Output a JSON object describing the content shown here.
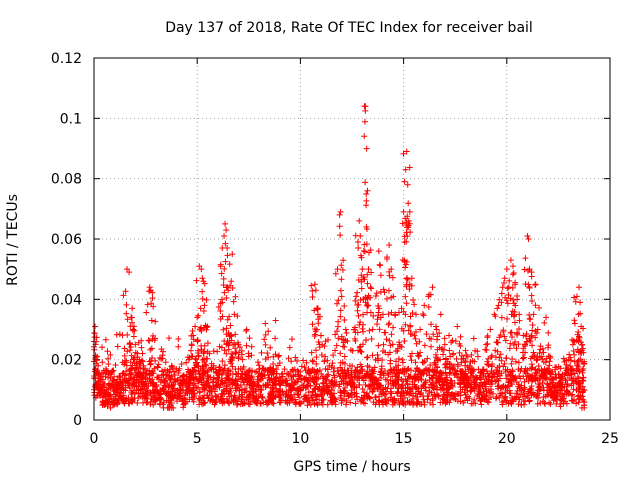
{
  "chart_data": {
    "type": "scatter",
    "title": "Day 137 of 2018, Rate Of TEC Index for receiver bail",
    "xlabel": "GPS time / hours",
    "ylabel": "ROTI / TECUs",
    "xlim": [
      0,
      25
    ],
    "ylim": [
      0,
      0.12
    ],
    "xticks": [
      0,
      5,
      10,
      15,
      20,
      25
    ],
    "yticks": [
      0,
      0.02,
      0.04,
      0.06,
      0.08,
      0.1,
      0.12
    ],
    "xtick_labels": [
      "0",
      "5",
      "10",
      "15",
      "20",
      "25"
    ],
    "ytick_labels": [
      "0",
      "0.02",
      "0.04",
      "0.06",
      "0.08",
      "0.1",
      "0.12"
    ],
    "grid": true,
    "marker": "+",
    "color": "#ff0000",
    "series": [
      {
        "name": "ROTI",
        "points": [
          [
            0.05,
            0.031
          ],
          [
            0.1,
            0.026
          ],
          [
            0.15,
            0.021
          ],
          [
            0.2,
            0.018
          ],
          [
            0.3,
            0.014
          ],
          [
            0.4,
            0.011
          ],
          [
            0.5,
            0.012
          ],
          [
            0.6,
            0.009
          ],
          [
            0.8,
            0.008
          ],
          [
            1.0,
            0.01
          ],
          [
            1.2,
            0.011
          ],
          [
            1.4,
            0.012
          ],
          [
            1.6,
            0.05
          ],
          [
            1.7,
            0.049
          ],
          [
            1.8,
            0.034
          ],
          [
            1.85,
            0.037
          ],
          [
            1.9,
            0.03
          ],
          [
            2.0,
            0.025
          ],
          [
            2.1,
            0.022
          ],
          [
            2.2,
            0.02
          ],
          [
            2.3,
            0.024
          ],
          [
            2.4,
            0.018
          ],
          [
            2.5,
            0.014
          ],
          [
            2.7,
            0.044
          ],
          [
            2.75,
            0.043
          ],
          [
            2.8,
            0.033
          ],
          [
            2.9,
            0.012
          ],
          [
            3.2,
            0.01
          ],
          [
            3.5,
            0.009
          ],
          [
            3.8,
            0.011
          ],
          [
            4.2,
            0.012
          ],
          [
            4.5,
            0.015
          ],
          [
            4.6,
            0.02
          ],
          [
            4.7,
            0.023
          ],
          [
            4.8,
            0.028
          ],
          [
            4.9,
            0.031
          ],
          [
            5.0,
            0.034
          ],
          [
            5.1,
            0.051
          ],
          [
            5.2,
            0.05
          ],
          [
            5.25,
            0.047
          ],
          [
            5.3,
            0.046
          ],
          [
            5.35,
            0.038
          ],
          [
            5.5,
            0.031
          ],
          [
            5.6,
            0.022
          ],
          [
            5.8,
            0.018
          ],
          [
            6.0,
            0.014
          ],
          [
            6.2,
            0.04
          ],
          [
            6.3,
            0.061
          ],
          [
            6.35,
            0.065
          ],
          [
            6.4,
            0.063
          ],
          [
            6.45,
            0.057
          ],
          [
            6.5,
            0.043
          ],
          [
            6.6,
            0.028
          ],
          [
            6.65,
            0.046
          ],
          [
            6.7,
            0.055
          ],
          [
            6.8,
            0.035
          ],
          [
            7.0,
            0.025
          ],
          [
            7.2,
            0.02
          ],
          [
            7.4,
            0.03
          ],
          [
            7.5,
            0.016
          ],
          [
            7.8,
            0.012
          ],
          [
            8.0,
            0.011
          ],
          [
            8.3,
            0.032
          ],
          [
            8.6,
            0.015
          ],
          [
            8.8,
            0.033
          ],
          [
            9.0,
            0.014
          ],
          [
            9.3,
            0.013
          ],
          [
            9.6,
            0.012
          ],
          [
            9.9,
            0.015
          ],
          [
            10.2,
            0.013
          ],
          [
            10.5,
            0.014
          ],
          [
            10.7,
            0.045
          ],
          [
            10.75,
            0.043
          ],
          [
            10.8,
            0.037
          ],
          [
            10.85,
            0.035
          ],
          [
            11.0,
            0.028
          ],
          [
            11.2,
            0.021
          ],
          [
            11.4,
            0.018
          ],
          [
            11.6,
            0.016
          ],
          [
            11.8,
            0.05
          ],
          [
            11.9,
            0.068
          ],
          [
            11.95,
            0.069
          ],
          [
            12.0,
            0.041
          ],
          [
            12.2,
            0.03
          ],
          [
            12.4,
            0.018
          ],
          [
            12.6,
            0.03
          ],
          [
            12.7,
            0.041
          ],
          [
            12.8,
            0.057
          ],
          [
            12.85,
            0.066
          ],
          [
            12.9,
            0.061
          ],
          [
            12.95,
            0.048
          ],
          [
            13.0,
            0.05
          ],
          [
            13.1,
            0.104
          ],
          [
            13.15,
            0.104
          ],
          [
            13.2,
            0.064
          ],
          [
            13.25,
            0.076
          ],
          [
            13.3,
            0.05
          ],
          [
            13.4,
            0.044
          ],
          [
            13.5,
            0.03
          ],
          [
            13.7,
            0.042
          ],
          [
            13.8,
            0.056
          ],
          [
            13.9,
            0.048
          ],
          [
            14.0,
            0.035
          ],
          [
            14.2,
            0.054
          ],
          [
            14.3,
            0.058
          ],
          [
            14.4,
            0.05
          ],
          [
            14.5,
            0.041
          ],
          [
            14.6,
            0.035
          ],
          [
            14.8,
            0.025
          ],
          [
            14.9,
            0.037
          ],
          [
            15.0,
            0.069
          ],
          [
            15.05,
            0.079
          ],
          [
            15.1,
            0.083
          ],
          [
            15.15,
            0.089
          ],
          [
            15.2,
            0.078
          ],
          [
            15.25,
            0.066
          ],
          [
            15.3,
            0.069
          ],
          [
            15.4,
            0.047
          ],
          [
            15.6,
            0.035
          ],
          [
            15.8,
            0.03
          ],
          [
            16.0,
            0.038
          ],
          [
            16.2,
            0.041
          ],
          [
            16.4,
            0.044
          ],
          [
            16.6,
            0.03
          ],
          [
            16.8,
            0.035
          ],
          [
            17.0,
            0.025
          ],
          [
            17.2,
            0.028
          ],
          [
            17.4,
            0.022
          ],
          [
            17.6,
            0.031
          ],
          [
            17.8,
            0.019
          ],
          [
            18.0,
            0.023
          ],
          [
            18.2,
            0.018
          ],
          [
            18.4,
            0.027
          ],
          [
            18.6,
            0.021
          ],
          [
            18.8,
            0.016
          ],
          [
            19.0,
            0.025
          ],
          [
            19.2,
            0.03
          ],
          [
            19.4,
            0.035
          ],
          [
            19.6,
            0.038
          ],
          [
            19.8,
            0.044
          ],
          [
            19.9,
            0.047
          ],
          [
            20.0,
            0.05
          ],
          [
            20.1,
            0.044
          ],
          [
            20.2,
            0.053
          ],
          [
            20.3,
            0.051
          ],
          [
            20.4,
            0.045
          ],
          [
            20.5,
            0.04
          ],
          [
            20.6,
            0.035
          ],
          [
            20.8,
            0.028
          ],
          [
            21.0,
            0.061
          ],
          [
            21.05,
            0.06
          ],
          [
            21.1,
            0.05
          ],
          [
            21.2,
            0.049
          ],
          [
            21.3,
            0.035
          ],
          [
            21.4,
            0.045
          ],
          [
            21.5,
            0.03
          ],
          [
            21.7,
            0.021
          ],
          [
            21.9,
            0.034
          ],
          [
            22.0,
            0.024
          ],
          [
            22.2,
            0.016
          ],
          [
            22.4,
            0.014
          ],
          [
            22.6,
            0.012
          ],
          [
            22.8,
            0.015
          ],
          [
            23.0,
            0.02
          ],
          [
            23.2,
            0.025
          ],
          [
            23.3,
            0.032
          ],
          [
            23.4,
            0.041
          ],
          [
            23.5,
            0.044
          ],
          [
            23.55,
            0.039
          ],
          [
            23.6,
            0.031
          ],
          [
            23.65,
            0.025
          ],
          [
            23.7,
            0.014
          ],
          [
            23.75,
            0.01
          ]
        ]
      }
    ],
    "note": "Dense background band of points with ROTI roughly 0.005-0.02 TECU/min across 0-23.75 h"
  }
}
